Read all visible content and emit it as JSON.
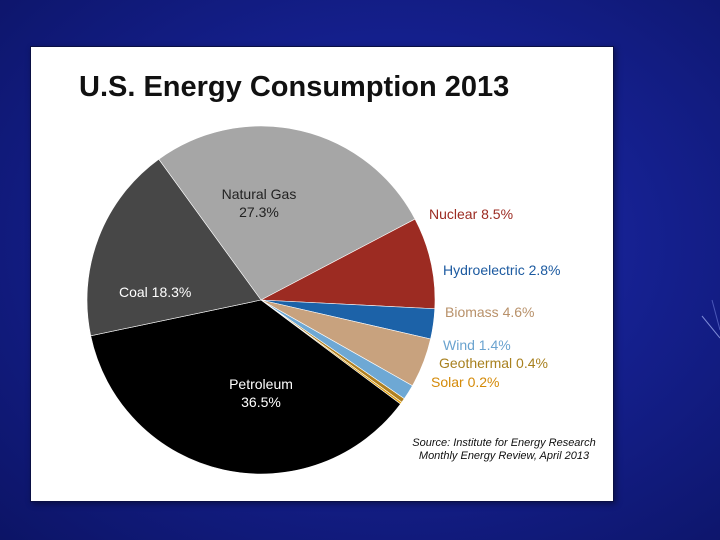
{
  "background": {
    "colors": {
      "dark": "#0c1466",
      "mid": "#15208f",
      "light": "#1f2fb0"
    }
  },
  "chart_data": {
    "type": "pie",
    "title": "U.S. Energy Consumption 2013",
    "start_angle_deg": 126,
    "direction": "clockwise",
    "slices": [
      {
        "name": "Natural Gas",
        "value": 27.3,
        "label": "Natural Gas",
        "value_label": "27.3%",
        "color": "#a6a6a6",
        "label_color": "#222222",
        "label_position": "inside"
      },
      {
        "name": "Nuclear",
        "value": 8.5,
        "label": "Nuclear 8.5%",
        "color": "#9c2b22",
        "label_color": "#9c2b22",
        "label_position": "outside"
      },
      {
        "name": "Hydroelectric",
        "value": 2.8,
        "label": "Hydroelectric 2.8%",
        "color": "#1c62a8",
        "label_color": "#1c5aa0",
        "label_position": "outside"
      },
      {
        "name": "Biomass",
        "value": 4.6,
        "label": "Biomass 4.6%",
        "color": "#c8a27e",
        "label_color": "#b8916a",
        "label_position": "outside"
      },
      {
        "name": "Wind",
        "value": 1.4,
        "label": "Wind 1.4%",
        "color": "#6ea8d4",
        "label_color": "#6aa3cf",
        "label_position": "outside"
      },
      {
        "name": "Geothermal",
        "value": 0.4,
        "label": "Geothermal 0.4%",
        "color": "#b08020",
        "label_color": "#a8801e",
        "label_position": "outside"
      },
      {
        "name": "Solar",
        "value": 0.2,
        "label": "Solar 0.2%",
        "color": "#e0a010",
        "label_color": "#d48a08",
        "label_position": "outside"
      },
      {
        "name": "Petroleum",
        "value": 36.5,
        "label": "Petroleum",
        "value_label": "36.5%",
        "color": "#000000",
        "label_color": "#ffffff",
        "label_position": "inside"
      },
      {
        "name": "Coal",
        "value": 18.3,
        "label": "Coal 18.3%",
        "color": "#474747",
        "label_color": "#ffffff",
        "label_position": "inside"
      }
    ],
    "source": {
      "line1": "Source: Institute for Energy Research",
      "line2": "Monthly Energy Review, April 2013"
    }
  }
}
